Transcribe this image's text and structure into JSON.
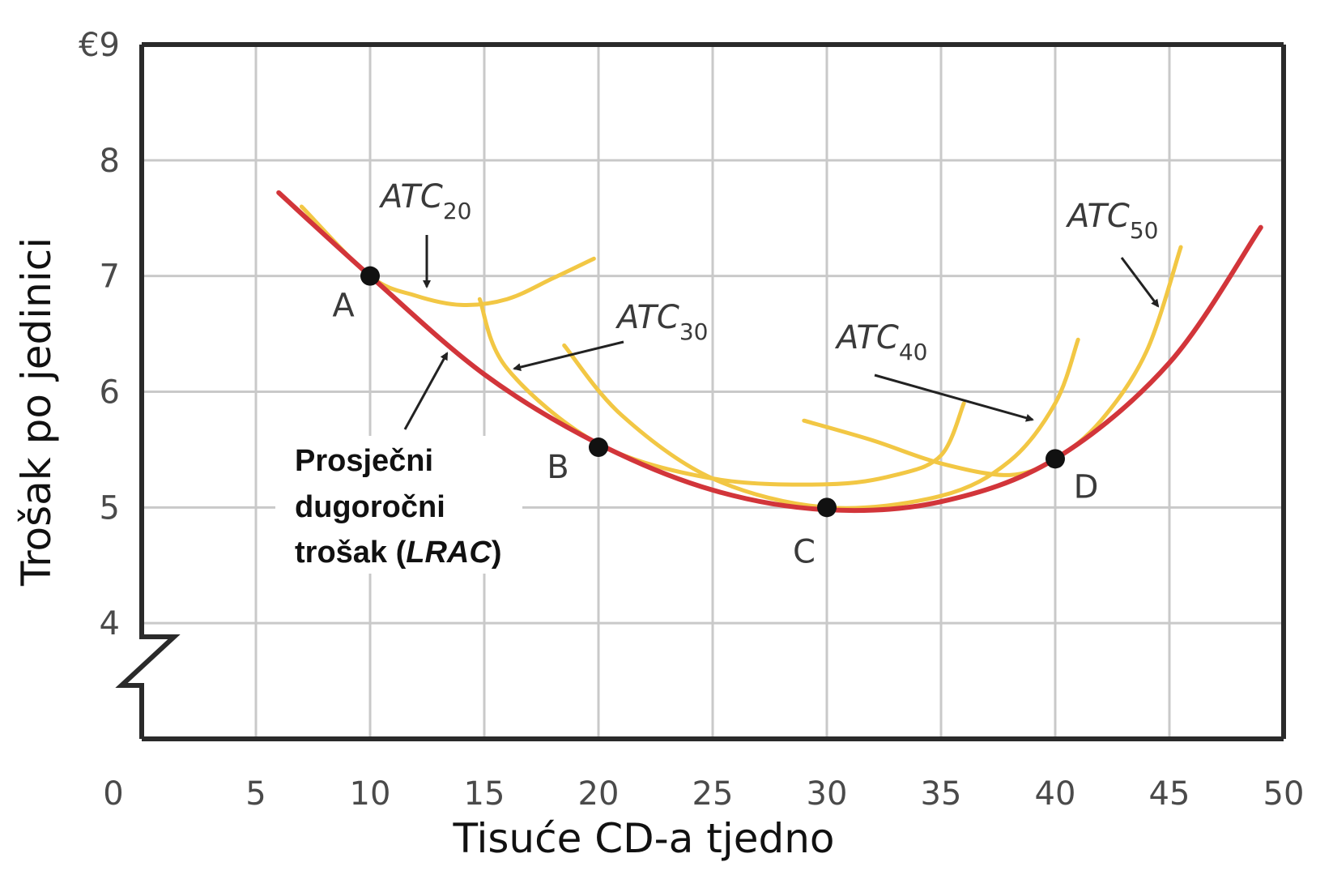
{
  "chart_data": {
    "type": "line",
    "xlabel": "Tisuće CD-a tjedno",
    "ylabel": "Trošak po jedinici",
    "xlim": [
      0,
      50
    ],
    "ylim": [
      3.0,
      9
    ],
    "x_ticks": [
      "0",
      "5",
      "10",
      "15",
      "20",
      "25",
      "30",
      "35",
      "40",
      "45",
      "50"
    ],
    "y_ticks": [
      {
        "value": 9,
        "label": "€9"
      },
      {
        "value": 8,
        "label": "8"
      },
      {
        "value": 7,
        "label": "7"
      },
      {
        "value": 6,
        "label": "6"
      },
      {
        "value": 5,
        "label": "5"
      },
      {
        "value": 4,
        "label": "4"
      }
    ],
    "grid": true,
    "axis_break": "y",
    "lrac_label": {
      "line1": "Prosječni",
      "line2": "dugoročni",
      "line3_prefix": "trošak (",
      "line3_italic": "LRAC",
      "line3_suffix": ")"
    },
    "series": [
      {
        "name": "LRAC",
        "color": "#d2353a",
        "x": [
          6,
          10,
          15,
          20,
          25,
          30,
          35,
          40,
          45,
          49
        ],
        "y": [
          7.72,
          7.0,
          6.15,
          5.55,
          5.15,
          4.98,
          5.05,
          5.42,
          6.25,
          7.42
        ]
      },
      {
        "name": "ATC20",
        "label_main": "ATC",
        "label_sub": "20",
        "color": "#f2c744",
        "x": [
          7,
          10,
          12,
          14,
          16,
          18,
          19.8
        ],
        "y": [
          7.6,
          7.0,
          6.83,
          6.75,
          6.8,
          6.98,
          7.15
        ]
      },
      {
        "name": "ATC30",
        "label_main": "ATC",
        "label_sub": "30",
        "color": "#f2c744",
        "x": [
          14.8,
          16,
          20,
          25,
          30,
          33,
          35,
          36
        ],
        "y": [
          6.8,
          6.2,
          5.55,
          5.25,
          5.2,
          5.28,
          5.45,
          5.9
        ]
      },
      {
        "name": "",
        "color": "#f2c744",
        "x": [
          18.5,
          21,
          25,
          30,
          35,
          38,
          40,
          41
        ],
        "y": [
          6.4,
          5.8,
          5.25,
          5.0,
          5.1,
          5.4,
          5.9,
          6.45
        ]
      },
      {
        "name": "ATC40",
        "label_main": "ATC",
        "label_sub": "40",
        "color": "#f2c744",
        "x": [
          29,
          32,
          35,
          38,
          40,
          42,
          44,
          45.5
        ],
        "y": [
          5.75,
          5.58,
          5.38,
          5.28,
          5.42,
          5.75,
          6.35,
          7.25
        ]
      }
    ],
    "labeled_series": {
      "ATC50": {
        "label_main": "ATC",
        "label_sub": "50"
      }
    },
    "points": [
      {
        "name": "A",
        "x": 10,
        "y": 7.0
      },
      {
        "name": "B",
        "x": 20,
        "y": 5.52
      },
      {
        "name": "C",
        "x": 30,
        "y": 5.0
      },
      {
        "name": "D",
        "x": 40,
        "y": 5.42
      }
    ]
  }
}
